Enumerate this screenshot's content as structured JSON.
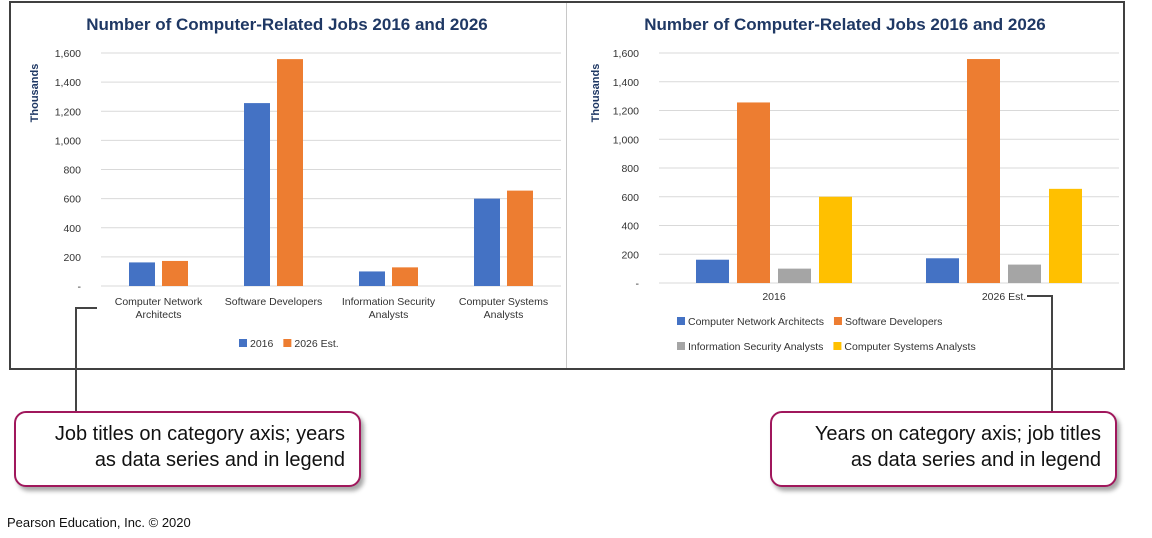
{
  "colors": {
    "blue": "#4472c4",
    "orange": "#ed7d31",
    "gray": "#a5a5a5",
    "yellow": "#ffc000",
    "callout_border": "#a0175c",
    "title": "#1f3864"
  },
  "chart_data": [
    {
      "type": "bar",
      "title": "Number of Computer-Related Jobs 2016 and 2026",
      "ylabel": "Thousands",
      "ylim": [
        0,
        1600
      ],
      "yticks": [
        "-",
        "200",
        "400",
        "600",
        "800",
        "1,000",
        "1,200",
        "1,400",
        "1,600"
      ],
      "grid": true,
      "legend_position": "bottom",
      "categories": [
        [
          "Computer Network",
          "Architects"
        ],
        [
          "Software Developers"
        ],
        [
          "Information Security",
          "Analysts"
        ],
        [
          "Computer Systems",
          "Analysts"
        ]
      ],
      "series": [
        {
          "name": "2016",
          "color": "#4472c4",
          "values": [
            162,
            1256,
            100,
            600
          ]
        },
        {
          "name": "2026 Est.",
          "color": "#ed7d31",
          "values": [
            172,
            1558,
            128,
            655
          ]
        }
      ]
    },
    {
      "type": "bar",
      "title": "Number of Computer-Related Jobs 2016 and 2026",
      "ylabel": "Thousands",
      "ylim": [
        0,
        1600
      ],
      "yticks": [
        "-",
        "200",
        "400",
        "600",
        "800",
        "1,000",
        "1,200",
        "1,400",
        "1,600"
      ],
      "grid": true,
      "legend_position": "bottom",
      "categories": [
        [
          "2016"
        ],
        [
          "2026 Est."
        ]
      ],
      "series": [
        {
          "name": "Computer Network Architects",
          "color": "#4472c4",
          "values": [
            162,
            172
          ]
        },
        {
          "name": "Software Developers",
          "color": "#ed7d31",
          "values": [
            1256,
            1558
          ]
        },
        {
          "name": "Information Security Analysts",
          "color": "#a5a5a5",
          "values": [
            100,
            128
          ]
        },
        {
          "name": "Computer Systems Analysts",
          "color": "#ffc000",
          "values": [
            600,
            655
          ]
        }
      ]
    }
  ],
  "callouts": {
    "left": [
      "Job titles on category axis; years",
      "as data series and in legend"
    ],
    "right": [
      "Years on category axis; job titles",
      "as data series and in legend"
    ]
  },
  "credit": "Pearson Education, Inc. © 2020"
}
